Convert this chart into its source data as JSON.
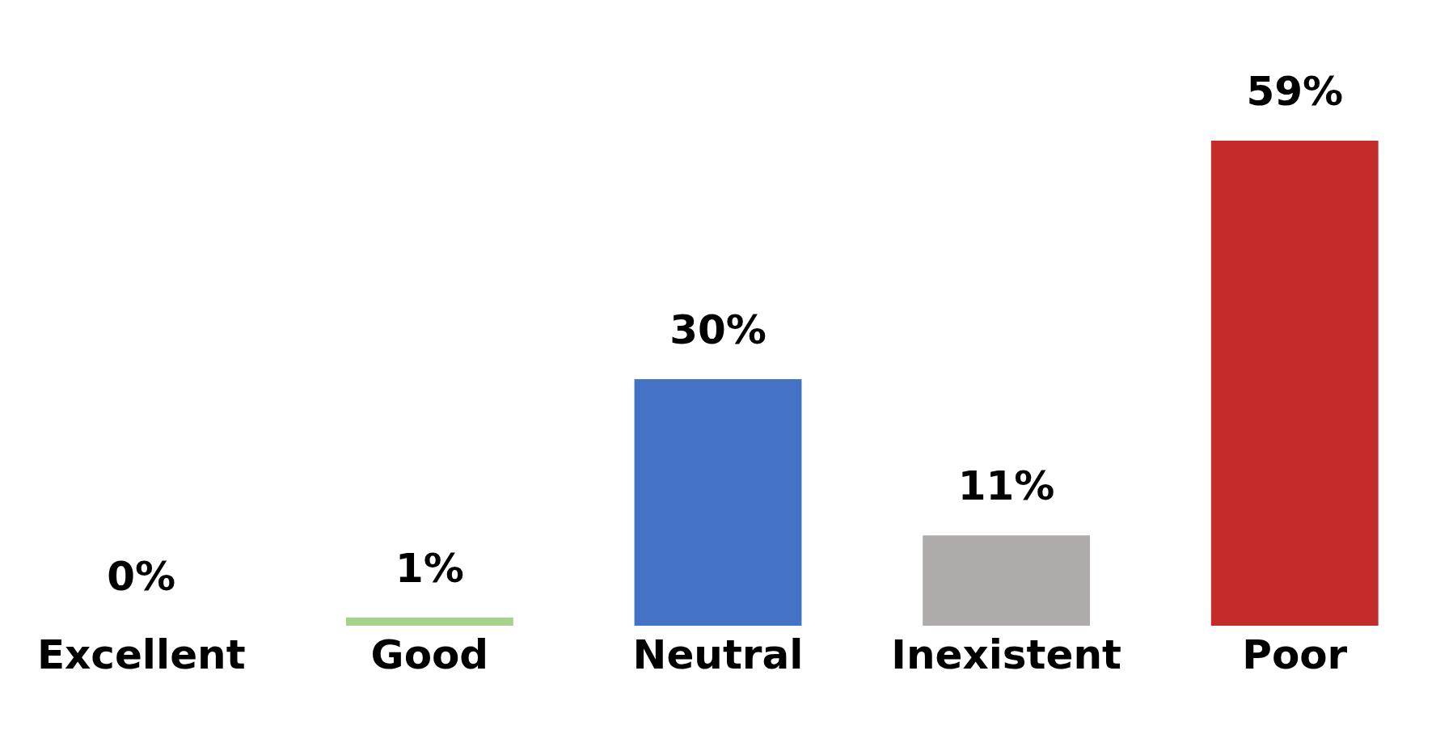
{
  "chart_data": {
    "type": "bar",
    "categories": [
      "Excellent",
      "Good",
      "Neutral",
      "Inexistent",
      "Poor"
    ],
    "values": [
      0,
      1,
      30,
      11,
      59
    ],
    "colors": [
      "#a9d18e",
      "#a9d18e",
      "#4472c4",
      "#afabab",
      "#c42b2b"
    ],
    "value_labels": [
      "0%",
      "1%",
      "30%",
      "11%",
      "59%"
    ]
  }
}
